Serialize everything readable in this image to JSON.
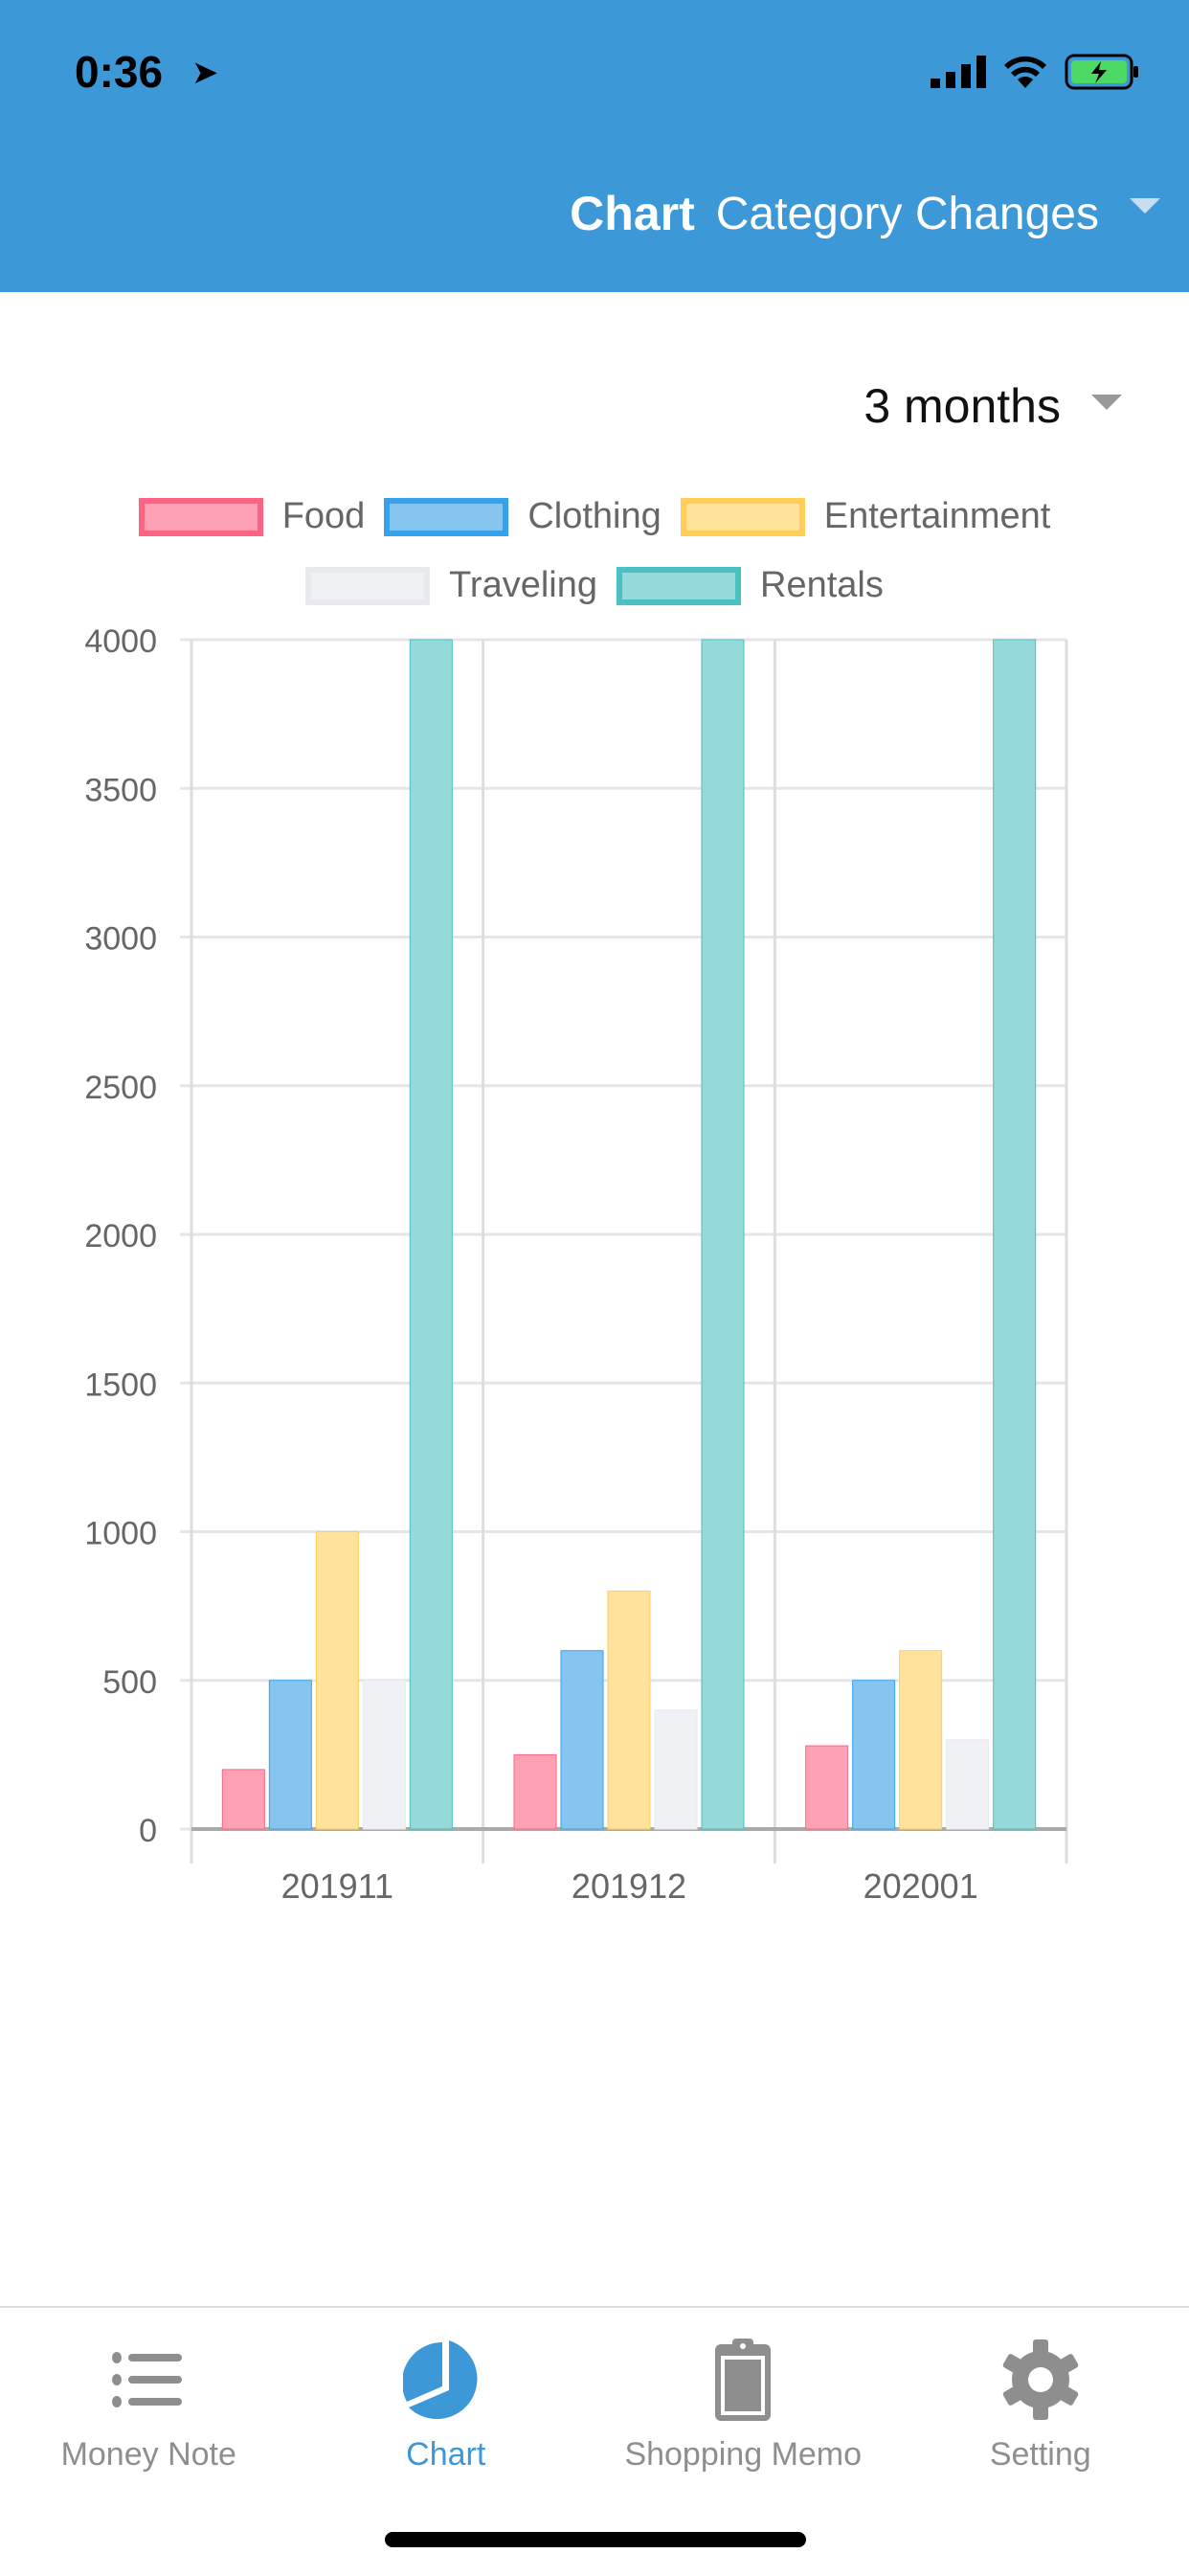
{
  "status_bar": {
    "time": "0:36"
  },
  "header": {
    "title": "Chart",
    "subtitle": "Category Changes"
  },
  "period": {
    "selected": "3 months"
  },
  "colors": {
    "accent": "#3d98d8"
  },
  "chart_data": {
    "type": "bar",
    "categories": [
      "201911",
      "201912",
      "202001"
    ],
    "series": [
      {
        "name": "Food",
        "values": [
          200,
          250,
          280
        ],
        "fill": "#ffa1b5",
        "border": "#ff6384"
      },
      {
        "name": "Clothing",
        "values": [
          500,
          600,
          500
        ],
        "fill": "#86c5ef",
        "border": "#36a2eb"
      },
      {
        "name": "Entertainment",
        "values": [
          1000,
          800,
          600
        ],
        "fill": "#ffe29c",
        "border": "#ffce56"
      },
      {
        "name": "Traveling",
        "values": [
          500,
          400,
          300
        ],
        "fill": "#f0f1f4",
        "border": "#e7e9ed"
      },
      {
        "name": "Rentals",
        "values": [
          4000,
          4000,
          4000
        ],
        "fill": "#95dada",
        "border": "#4bc0c0"
      }
    ],
    "ylim": [
      0,
      4000
    ],
    "yticks": [
      "0",
      "500",
      "1000",
      "1500",
      "2000",
      "2500",
      "3000",
      "3500",
      "4000"
    ],
    "legend": "top",
    "grid": true
  },
  "tabs": [
    {
      "label": "Money Note",
      "icon": "list-icon"
    },
    {
      "label": "Chart",
      "icon": "pie-chart-icon"
    },
    {
      "label": "Shopping Memo",
      "icon": "clipboard-icon"
    },
    {
      "label": "Setting",
      "icon": "gear-icon"
    }
  ]
}
